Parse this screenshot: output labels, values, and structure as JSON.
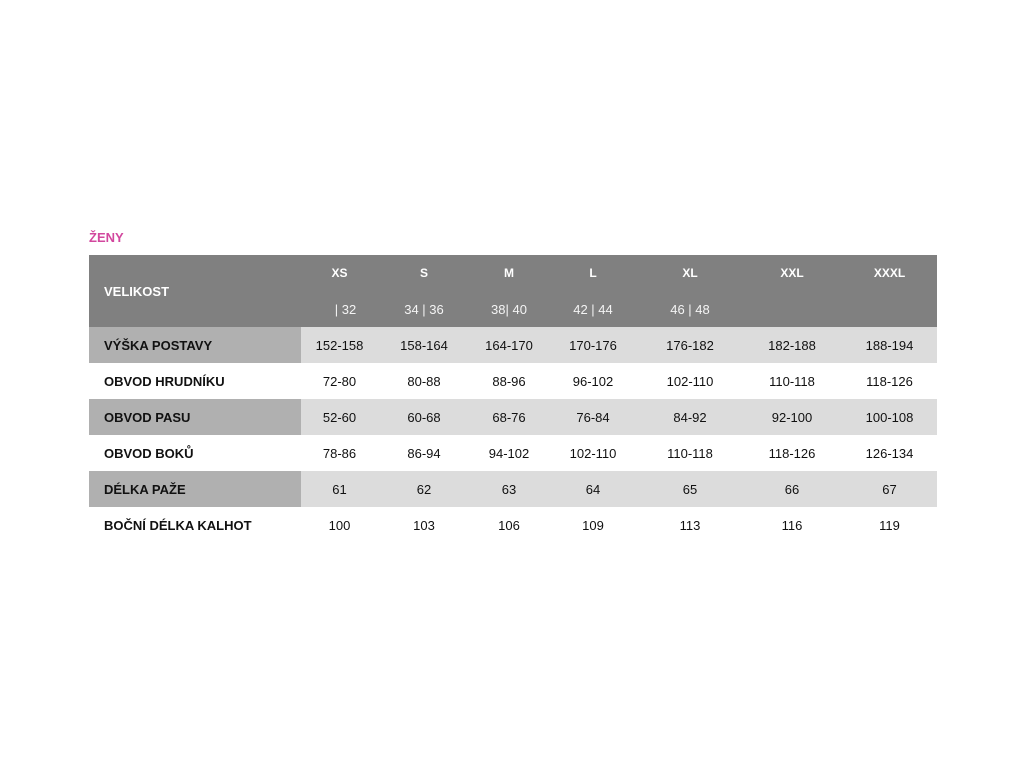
{
  "title": "ŽENY",
  "header": {
    "label": "VELIKOST",
    "sizes": [
      "XS",
      "S",
      "M",
      "L",
      "XL",
      "XXL",
      "XXXL"
    ],
    "eu_sizes": [
      "| 32",
      "34 | 36",
      "38| 40",
      "42 | 44",
      "46 | 48",
      "",
      ""
    ]
  },
  "rows": [
    {
      "label": "VÝŠKA POSTAVY",
      "values": [
        "152-158",
        "158-164",
        "164-170",
        "170-176",
        "176-182",
        "182-188",
        "188-194"
      ]
    },
    {
      "label": "OBVOD HRUDNÍKU",
      "values": [
        "72-80",
        "80-88",
        "88-96",
        "96-102",
        "102-110",
        "110-118",
        "118-126"
      ]
    },
    {
      "label": "OBVOD PASU",
      "values": [
        "52-60",
        "60-68",
        "68-76",
        "76-84",
        "84-92",
        "92-100",
        "100-108"
      ]
    },
    {
      "label": "OBVOD BOKŮ",
      "values": [
        "78-86",
        "86-94",
        "94-102",
        "102-110",
        "110-118",
        "118-126",
        "126-134"
      ]
    },
    {
      "label": "DÉLKA PAŽE",
      "values": [
        "61",
        "62",
        "63",
        "64",
        "65",
        "66",
        "67"
      ]
    },
    {
      "label": "BOČNÍ DÉLKA KALHOT",
      "values": [
        "100",
        "103",
        "106",
        "109",
        "113",
        "116",
        "119"
      ]
    }
  ],
  "colors": {
    "title": "#d2479e",
    "header_bg": "#808080",
    "label_shade": "#b0b0b0",
    "row_shade": "#dcdcdc"
  }
}
